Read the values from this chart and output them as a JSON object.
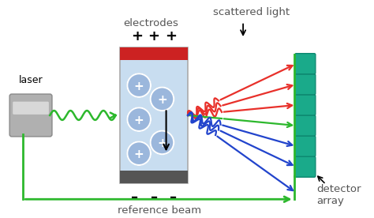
{
  "bg_color": "#ffffff",
  "laser_label": "laser",
  "electrodes_label": "electrodes",
  "scattered_label": "scattered light",
  "reference_label": "reference beam",
  "detector_label": "detector\narray",
  "green": "#2db82d",
  "red": "#e8302a",
  "blue": "#2244cc",
  "teal": "#1aaa8a",
  "red_electrode": "#cc2222",
  "dark_gray": "#555555",
  "light_blue": "#c8ddf0",
  "cell_border": "#aaaaaa",
  "laser_gray": "#b0b0b0",
  "laser_light": "#d8d8d8",
  "particle_fill": "#7799cc",
  "particle_border": "#4477aa"
}
